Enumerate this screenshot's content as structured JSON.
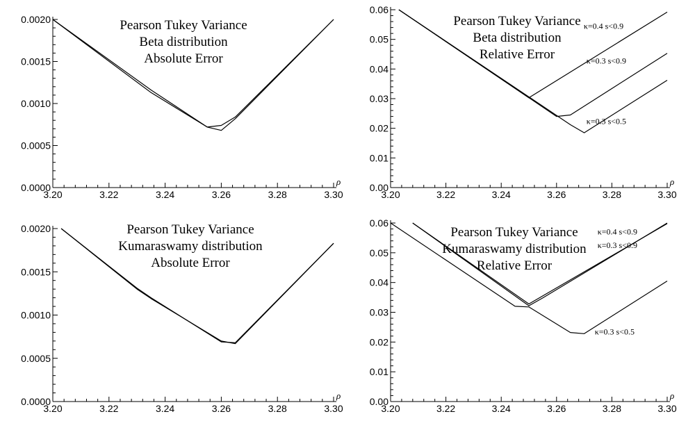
{
  "chart_data": [
    {
      "type": "line",
      "title": [
        "Pearson Tukey Variance",
        "Beta distribution",
        "Absolute Error"
      ],
      "xlabel": "ρ",
      "xlim": [
        3.2,
        3.3
      ],
      "ylim": [
        0,
        0.002
      ],
      "xticks": [
        3.2,
        3.22,
        3.24,
        3.26,
        3.28,
        3.3
      ],
      "xtick_labels": [
        "3.20",
        "3.22",
        "3.24",
        "3.26",
        "3.28",
        "3.30"
      ],
      "yticks": [
        0,
        0.0005,
        0.001,
        0.0015,
        0.002
      ],
      "ytick_labels": [
        "0.0000",
        "0.0005",
        "0.0010",
        "0.0015",
        "0.0020"
      ],
      "annotations": [],
      "series": [
        {
          "x": [
            3.2,
            3.235,
            3.255,
            3.26,
            3.265,
            3.3
          ],
          "y": [
            0.002,
            0.00113,
            0.00072,
            0.00068,
            0.00082,
            0.002
          ]
        },
        {
          "x": [
            3.2,
            3.235,
            3.255,
            3.26,
            3.265,
            3.3
          ],
          "y": [
            0.002,
            0.00116,
            0.00072,
            0.00074,
            0.00084,
            0.002
          ]
        }
      ]
    },
    {
      "type": "line",
      "title": [
        "Pearson Tukey Variance",
        "Beta distribution",
        "Relative Error"
      ],
      "xlabel": "ρ",
      "xlim": [
        3.2,
        3.3
      ],
      "ylim": [
        0,
        0.06
      ],
      "xticks": [
        3.2,
        3.22,
        3.24,
        3.26,
        3.28,
        3.3
      ],
      "xtick_labels": [
        "3.20",
        "3.22",
        "3.24",
        "3.26",
        "3.28",
        "3.30"
      ],
      "yticks": [
        0,
        0.01,
        0.02,
        0.03,
        0.04,
        0.05,
        0.06
      ],
      "ytick_labels": [
        "0.00",
        "0.01",
        "0.02",
        "0.03",
        "0.04",
        "0.05",
        "0.06"
      ],
      "annotations": [
        {
          "text": "κ=0.4 s<0.9",
          "x": 3.277,
          "y": 0.0535
        },
        {
          "text": "κ=0.3 s<0.9",
          "x": 3.278,
          "y": 0.0418
        },
        {
          "text": "κ=0.3 s<0.5",
          "x": 3.278,
          "y": 0.0215
        }
      ],
      "series": [
        {
          "x": [
            3.203,
            3.25,
            3.3
          ],
          "y": [
            0.06,
            0.0303,
            0.0592
          ]
        },
        {
          "x": [
            3.203,
            3.26,
            3.265,
            3.3
          ],
          "y": [
            0.06,
            0.024,
            0.0245,
            0.0453
          ]
        },
        {
          "x": [
            3.203,
            3.265,
            3.27,
            3.3
          ],
          "y": [
            0.06,
            0.0212,
            0.0185,
            0.0362
          ]
        }
      ]
    },
    {
      "type": "line",
      "title": [
        "Pearson Tukey Variance",
        "Kumaraswamy distribution",
        "Absolute Error"
      ],
      "xlabel": "ρ",
      "xlim": [
        3.2,
        3.3
      ],
      "ylim": [
        0,
        0.002
      ],
      "xticks": [
        3.2,
        3.22,
        3.24,
        3.26,
        3.28,
        3.3
      ],
      "xtick_labels": [
        "3.20",
        "3.22",
        "3.24",
        "3.26",
        "3.28",
        "3.30"
      ],
      "yticks": [
        0,
        0.0005,
        0.001,
        0.0015,
        0.002
      ],
      "ytick_labels": [
        "0.0000",
        "0.0005",
        "0.0010",
        "0.0015",
        "0.0020"
      ],
      "annotations": [],
      "series": [
        {
          "x": [
            3.203,
            3.23,
            3.235,
            3.26,
            3.265,
            3.3
          ],
          "y": [
            0.002,
            0.0013,
            0.00119,
            0.0007,
            0.00067,
            0.00183
          ]
        },
        {
          "x": [
            3.203,
            3.23,
            3.235,
            3.26,
            3.265,
            3.3
          ],
          "y": [
            0.002,
            0.00131,
            0.0012,
            0.00069,
            0.00068,
            0.00183
          ]
        }
      ]
    },
    {
      "type": "line",
      "title": [
        "Pearson Tukey Variance",
        "Kumaraswamy distribution",
        "Relative Error"
      ],
      "xlabel": "ρ",
      "xlim": [
        3.2,
        3.3
      ],
      "ylim": [
        0,
        0.06
      ],
      "xticks": [
        3.2,
        3.22,
        3.24,
        3.26,
        3.28,
        3.3
      ],
      "xtick_labels": [
        "3.20",
        "3.22",
        "3.24",
        "3.26",
        "3.28",
        "3.30"
      ],
      "yticks": [
        0,
        0.01,
        0.02,
        0.03,
        0.04,
        0.05,
        0.06
      ],
      "ytick_labels": [
        "0.00",
        "0.01",
        "0.02",
        "0.03",
        "0.04",
        "0.05",
        "0.06"
      ],
      "annotations": [
        {
          "text": "κ=0.4 s<0.9",
          "x": 3.282,
          "y": 0.0562
        },
        {
          "text": "κ=0.3 s<0.9",
          "x": 3.282,
          "y": 0.0516
        },
        {
          "text": "κ=0.3 s<0.5",
          "x": 3.281,
          "y": 0.0225
        }
      ],
      "series": [
        {
          "x": [
            3.208,
            3.25,
            3.3
          ],
          "y": [
            0.06,
            0.0328,
            0.0598
          ]
        },
        {
          "x": [
            3.208,
            3.25,
            3.255,
            3.3
          ],
          "y": [
            0.06,
            0.0322,
            0.0348,
            0.06
          ]
        },
        {
          "x": [
            3.2,
            3.245,
            3.25,
            3.265,
            3.27,
            3.3
          ],
          "y": [
            0.06,
            0.032,
            0.0318,
            0.0232,
            0.0228,
            0.0405
          ]
        }
      ]
    }
  ]
}
